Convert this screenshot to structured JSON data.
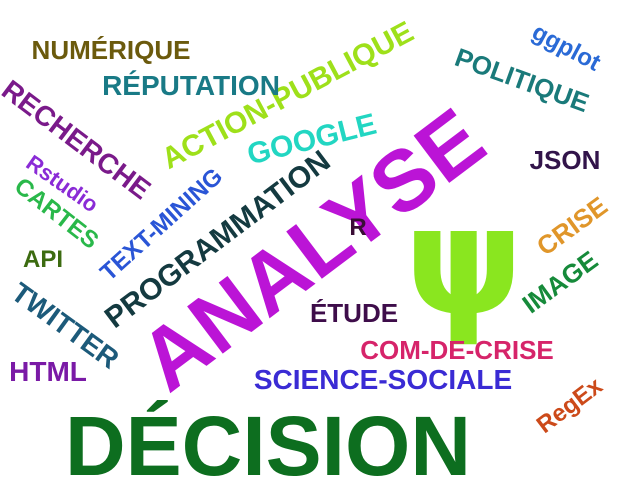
{
  "words": {
    "decision": {
      "text": "DÉCISION",
      "color": "#0d6e1f"
    },
    "analyse": {
      "text": "ANALYSE",
      "color": "#bb14d6"
    },
    "psi": {
      "text": "ψ",
      "color": "#8ae61f"
    },
    "science_sociale": {
      "text": "SCIENCE-SOCIALE",
      "color": "#3a2bd4"
    },
    "com_de_crise": {
      "text": "COM-DE-CRISE",
      "color": "#d6246a"
    },
    "etude": {
      "text": "ÉTUDE",
      "color": "#3e0d4a"
    },
    "programmation": {
      "text": "PROGRAMMATION",
      "color": "#143a40"
    },
    "text_mining": {
      "text": "TEXT-MINING",
      "color": "#2a55d6"
    },
    "action_publique": {
      "text": "ACTION-PUBLIQUE",
      "color": "#9ee01a"
    },
    "google": {
      "text": "GOOGLE",
      "color": "#22d6c2"
    },
    "reputation": {
      "text": "RÉPUTATION",
      "color": "#197a86"
    },
    "numerique": {
      "text": "NUMÉRIQUE",
      "color": "#6b5a0d"
    },
    "recherche": {
      "text": "RECHERCHE",
      "color": "#7a1a8a"
    },
    "rstudio": {
      "text": "Rstudio",
      "color": "#8a2bd6"
    },
    "cartes": {
      "text": "CARTES",
      "color": "#29b84a"
    },
    "api": {
      "text": "API",
      "color": "#3c6b10"
    },
    "twitter": {
      "text": "TWITTER",
      "color": "#1c5a7a"
    },
    "html": {
      "text": "HTML",
      "color": "#7a1aa6"
    },
    "r": {
      "text": "R",
      "color": "#3a0d36"
    },
    "json": {
      "text": "JSON",
      "color": "#32144a"
    },
    "crise": {
      "text": "CRISE",
      "color": "#e0962a"
    },
    "image": {
      "text": "IMAGE",
      "color": "#168a3a"
    },
    "regex": {
      "text": "RegEx",
      "color": "#cc4a1a"
    },
    "politique": {
      "text": "POLITIQUE",
      "color": "#1a7a7a"
    },
    "ggplot": {
      "text": "ggplot",
      "color": "#2a6ad6"
    }
  }
}
